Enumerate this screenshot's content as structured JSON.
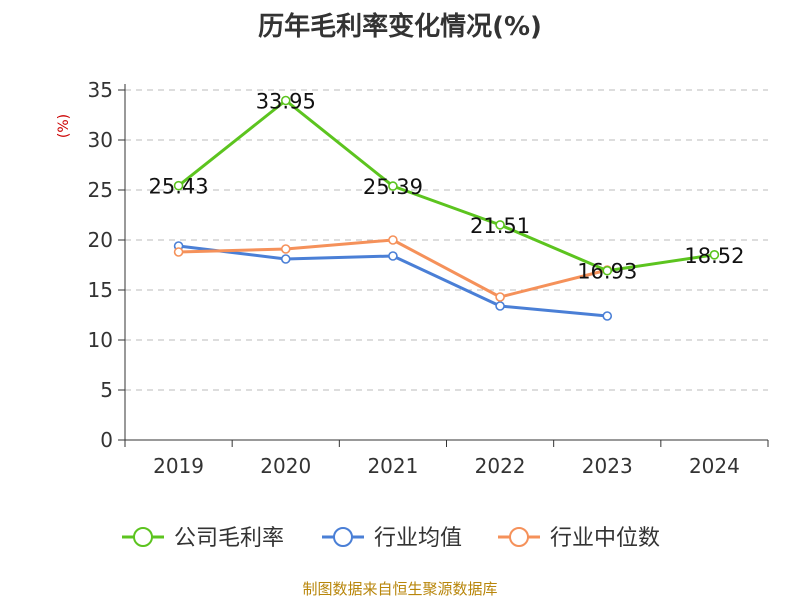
{
  "title": "历年毛利率变化情况(%)",
  "source": "制图数据来自恒生聚源数据库",
  "chart_data": {
    "type": "line",
    "title": "历年毛利率变化情况(%)",
    "ylabel": "(%)",
    "xlabel": "",
    "categories": [
      "2019",
      "2020",
      "2021",
      "2022",
      "2023",
      "2024"
    ],
    "ylim": [
      0,
      35
    ],
    "yticks": [
      0,
      5,
      10,
      15,
      20,
      25,
      30,
      35
    ],
    "grid": true,
    "legend_position": "bottom",
    "series": [
      {
        "name": "公司毛利率",
        "color": "#5cc41f",
        "values": [
          25.43,
          33.95,
          25.39,
          21.51,
          16.93,
          18.52
        ],
        "labels": [
          "25.43",
          "33.95",
          "25.39",
          "21.51",
          "16.93",
          "18.52"
        ]
      },
      {
        "name": "行业均值",
        "color": "#4a7fd6",
        "values": [
          19.4,
          18.1,
          18.4,
          13.4,
          12.4,
          null
        ]
      },
      {
        "name": "行业中位数",
        "color": "#f5915a",
        "values": [
          18.8,
          19.1,
          20.0,
          14.3,
          17.0,
          null
        ]
      }
    ]
  }
}
